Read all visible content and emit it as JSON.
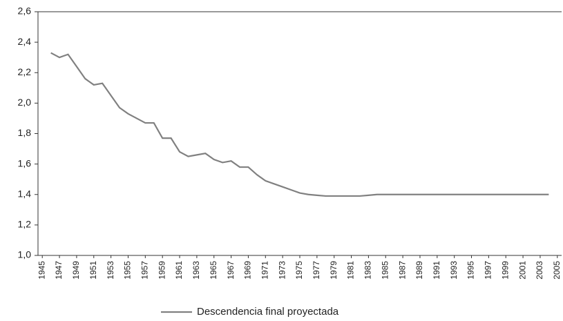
{
  "chart_data": {
    "type": "line",
    "x": [
      1946,
      1947,
      1948,
      1949,
      1950,
      1951,
      1952,
      1953,
      1954,
      1955,
      1956,
      1957,
      1958,
      1959,
      1960,
      1961,
      1962,
      1963,
      1964,
      1965,
      1966,
      1967,
      1968,
      1969,
      1970,
      1971,
      1972,
      1973,
      1974,
      1975,
      1976,
      1977,
      1978,
      1979,
      1980,
      1981,
      1982,
      1983,
      1984,
      1985,
      1986,
      1987,
      1988,
      1989,
      1990,
      1991,
      1992,
      1993,
      1994,
      1995,
      1996,
      1997,
      1998,
      1999,
      2000,
      2001,
      2002,
      2003,
      2004
    ],
    "series": [
      {
        "name": "Descendencia final proyectada",
        "color": "#808080",
        "values": [
          2.33,
          2.3,
          2.32,
          2.24,
          2.16,
          2.12,
          2.13,
          2.05,
          1.97,
          1.93,
          1.9,
          1.87,
          1.87,
          1.77,
          1.77,
          1.68,
          1.65,
          1.66,
          1.67,
          1.63,
          1.61,
          1.62,
          1.58,
          1.58,
          1.53,
          1.49,
          1.47,
          1.45,
          1.43,
          1.41,
          1.4,
          1.395,
          1.39,
          1.39,
          1.39,
          1.39,
          1.39,
          1.395,
          1.4,
          1.4,
          1.4,
          1.4,
          1.4,
          1.4,
          1.4,
          1.4,
          1.4,
          1.4,
          1.4,
          1.4,
          1.4,
          1.4,
          1.4,
          1.4,
          1.4,
          1.4,
          1.4,
          1.4,
          1.4
        ]
      }
    ],
    "xlim": [
      1944.5,
      2005.5
    ],
    "xticks": [
      1945,
      1947,
      1949,
      1951,
      1953,
      1955,
      1957,
      1959,
      1961,
      1963,
      1965,
      1967,
      1969,
      1971,
      1973,
      1975,
      1977,
      1979,
      1981,
      1983,
      1985,
      1987,
      1989,
      1991,
      1993,
      1995,
      1997,
      1999,
      2001,
      2003,
      2005
    ],
    "ylim": [
      1.0,
      2.6
    ],
    "yticks": [
      {
        "value": 1.0,
        "label": "1,0"
      },
      {
        "value": 1.2,
        "label": "1,2"
      },
      {
        "value": 1.4,
        "label": "1,4"
      },
      {
        "value": 1.6,
        "label": "1,6"
      },
      {
        "value": 1.8,
        "label": "1,8"
      },
      {
        "value": 2.0,
        "label": "2,0"
      },
      {
        "value": 2.2,
        "label": "2,2"
      },
      {
        "value": 2.4,
        "label": "2,4"
      },
      {
        "value": 2.6,
        "label": "2,6"
      }
    ],
    "grid": false,
    "legend": "bottom"
  }
}
